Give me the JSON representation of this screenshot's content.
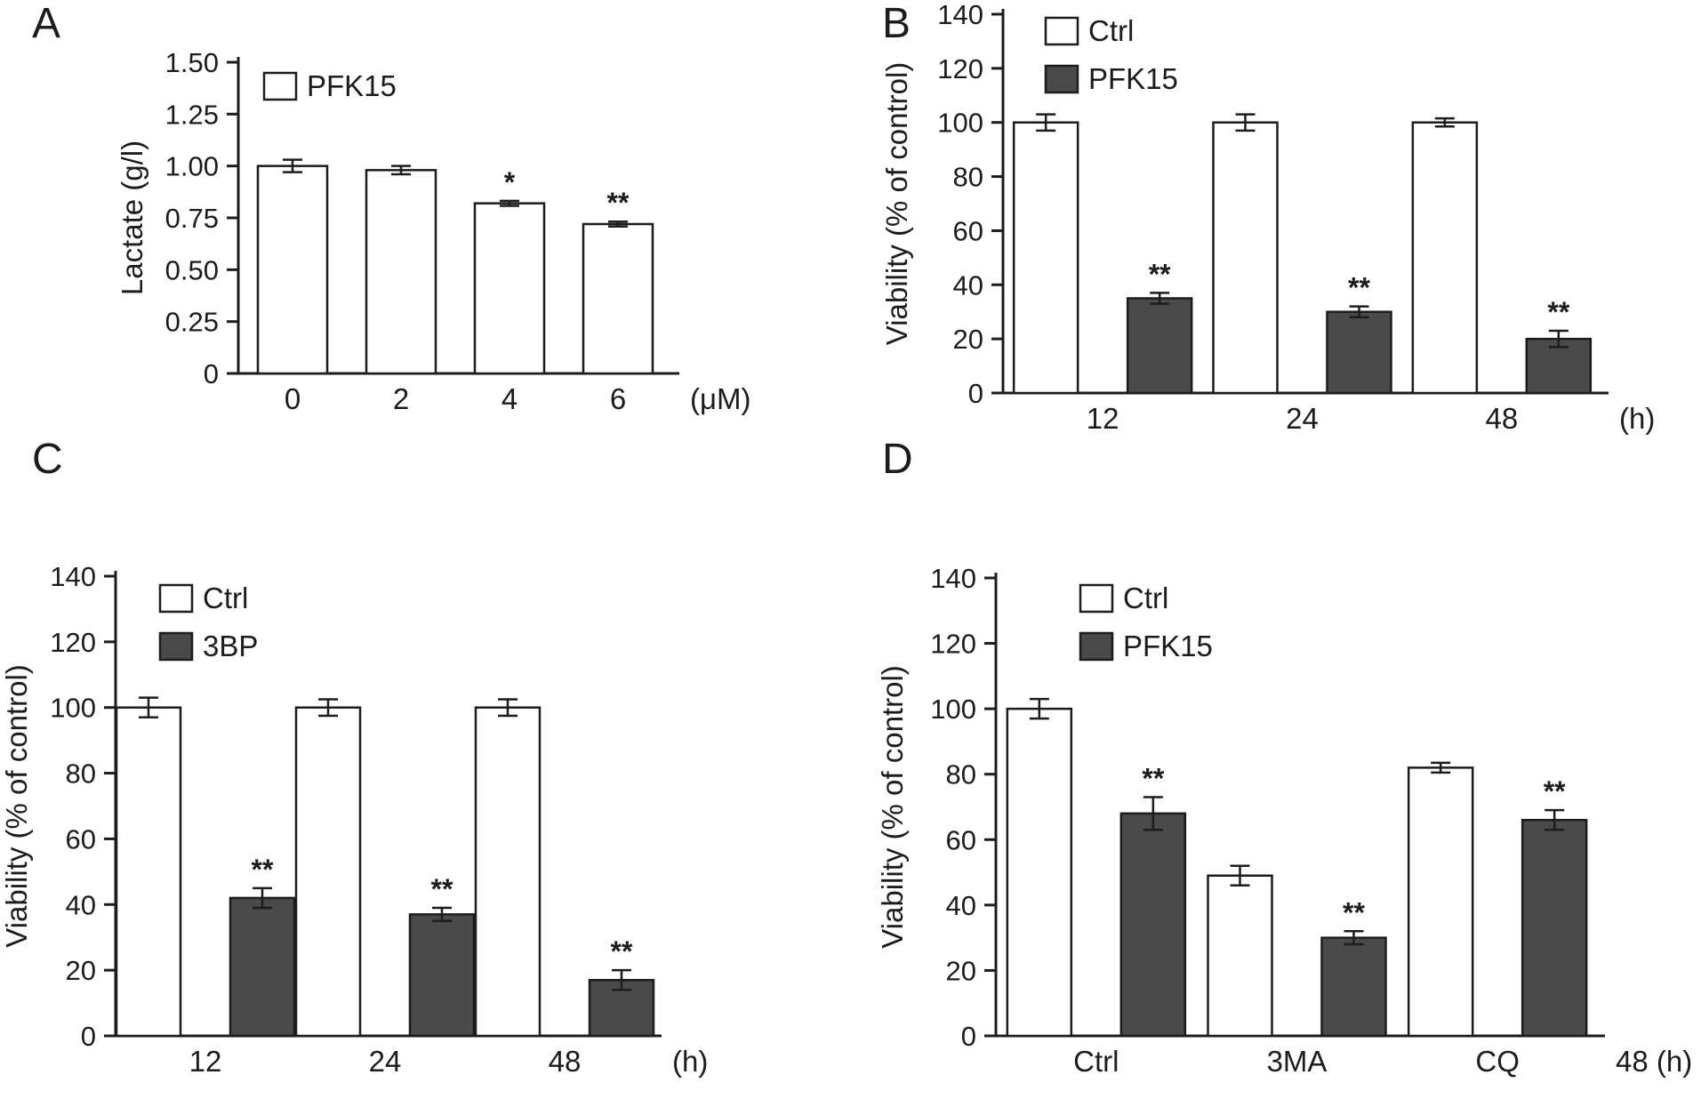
{
  "colors": {
    "background": "#ffffff",
    "axis": "#1c1c1c",
    "bar_fill_light": "#ffffff",
    "bar_fill_dark": "#4a4a4a"
  },
  "panel_labels": [
    "A",
    "B",
    "C",
    "D"
  ],
  "chart_data": [
    {
      "type": "bar",
      "panel": "A",
      "title": "",
      "ylabel": "Lactate (g/l)",
      "ylim": [
        0,
        1.5
      ],
      "yticks": [
        0,
        0.25,
        0.5,
        0.75,
        1.0,
        1.25,
        1.5
      ],
      "ytick_labels": [
        "0",
        "0.25",
        "0.50",
        "0.75",
        "1.00",
        "1.25",
        "1.50"
      ],
      "categories": [
        "0",
        "2",
        "4",
        "6"
      ],
      "x_unit": "(μM)",
      "grid": false,
      "legend_position": "top-left-inside",
      "series": [
        {
          "name": "PFK15",
          "fill": "light",
          "values": [
            1.0,
            0.98,
            0.82,
            0.72
          ],
          "errors": [
            0.03,
            0.02,
            0.012,
            0.012
          ],
          "annotations": [
            "",
            "",
            "*",
            "**"
          ]
        }
      ]
    },
    {
      "type": "bar",
      "panel": "B",
      "title": "",
      "ylabel": "Viability (% of control)",
      "ylim": [
        0,
        140
      ],
      "yticks": [
        0,
        20,
        40,
        60,
        80,
        100,
        120,
        140
      ],
      "ytick_labels": [
        "0",
        "20",
        "40",
        "60",
        "80",
        "100",
        "120",
        "140"
      ],
      "categories": [
        "12",
        "24",
        "48"
      ],
      "x_unit": "(h)",
      "grid": false,
      "legend_position": "top-left-inside",
      "series": [
        {
          "name": "Ctrl",
          "fill": "light",
          "values": [
            100,
            100,
            100
          ],
          "errors": [
            3,
            3,
            1.5
          ],
          "annotations": [
            "",
            "",
            ""
          ]
        },
        {
          "name": "PFK15",
          "fill": "dark",
          "values": [
            35,
            30,
            20
          ],
          "errors": [
            2,
            2,
            3
          ],
          "annotations": [
            "**",
            "**",
            "**"
          ]
        }
      ]
    },
    {
      "type": "bar",
      "panel": "C",
      "title": "",
      "ylabel": "Viability (% of control)",
      "ylim": [
        0,
        140
      ],
      "yticks": [
        0,
        20,
        40,
        60,
        80,
        100,
        120,
        140
      ],
      "ytick_labels": [
        "0",
        "20",
        "40",
        "60",
        "80",
        "100",
        "120",
        "140"
      ],
      "categories": [
        "12",
        "24",
        "48"
      ],
      "x_unit": "(h)",
      "grid": false,
      "legend_position": "top-left-inside",
      "series": [
        {
          "name": "Ctrl",
          "fill": "light",
          "values": [
            100,
            100,
            100
          ],
          "errors": [
            3,
            2.5,
            2.5
          ],
          "annotations": [
            "",
            "",
            ""
          ]
        },
        {
          "name": "3BP",
          "fill": "dark",
          "values": [
            42,
            37,
            17
          ],
          "errors": [
            3,
            2,
            3
          ],
          "annotations": [
            "**",
            "**",
            "**"
          ]
        }
      ]
    },
    {
      "type": "bar",
      "panel": "D",
      "title": "",
      "ylabel": "Viability (% of control)",
      "ylim": [
        0,
        140
      ],
      "yticks": [
        0,
        20,
        40,
        60,
        80,
        100,
        120,
        140
      ],
      "ytick_labels": [
        "0",
        "20",
        "40",
        "60",
        "80",
        "100",
        "120",
        "140"
      ],
      "categories": [
        "Ctrl",
        "3MA",
        "CQ"
      ],
      "x_unit": "48 (h)",
      "grid": false,
      "legend_position": "top-left-inside",
      "series": [
        {
          "name": "Ctrl",
          "fill": "light",
          "values": [
            100,
            49,
            82
          ],
          "errors": [
            3,
            3,
            1.5
          ],
          "annotations": [
            "",
            "",
            ""
          ]
        },
        {
          "name": "PFK15",
          "fill": "dark",
          "values": [
            68,
            30,
            66
          ],
          "errors": [
            5,
            2,
            3
          ],
          "annotations": [
            "**",
            "**",
            "**"
          ]
        }
      ]
    }
  ]
}
